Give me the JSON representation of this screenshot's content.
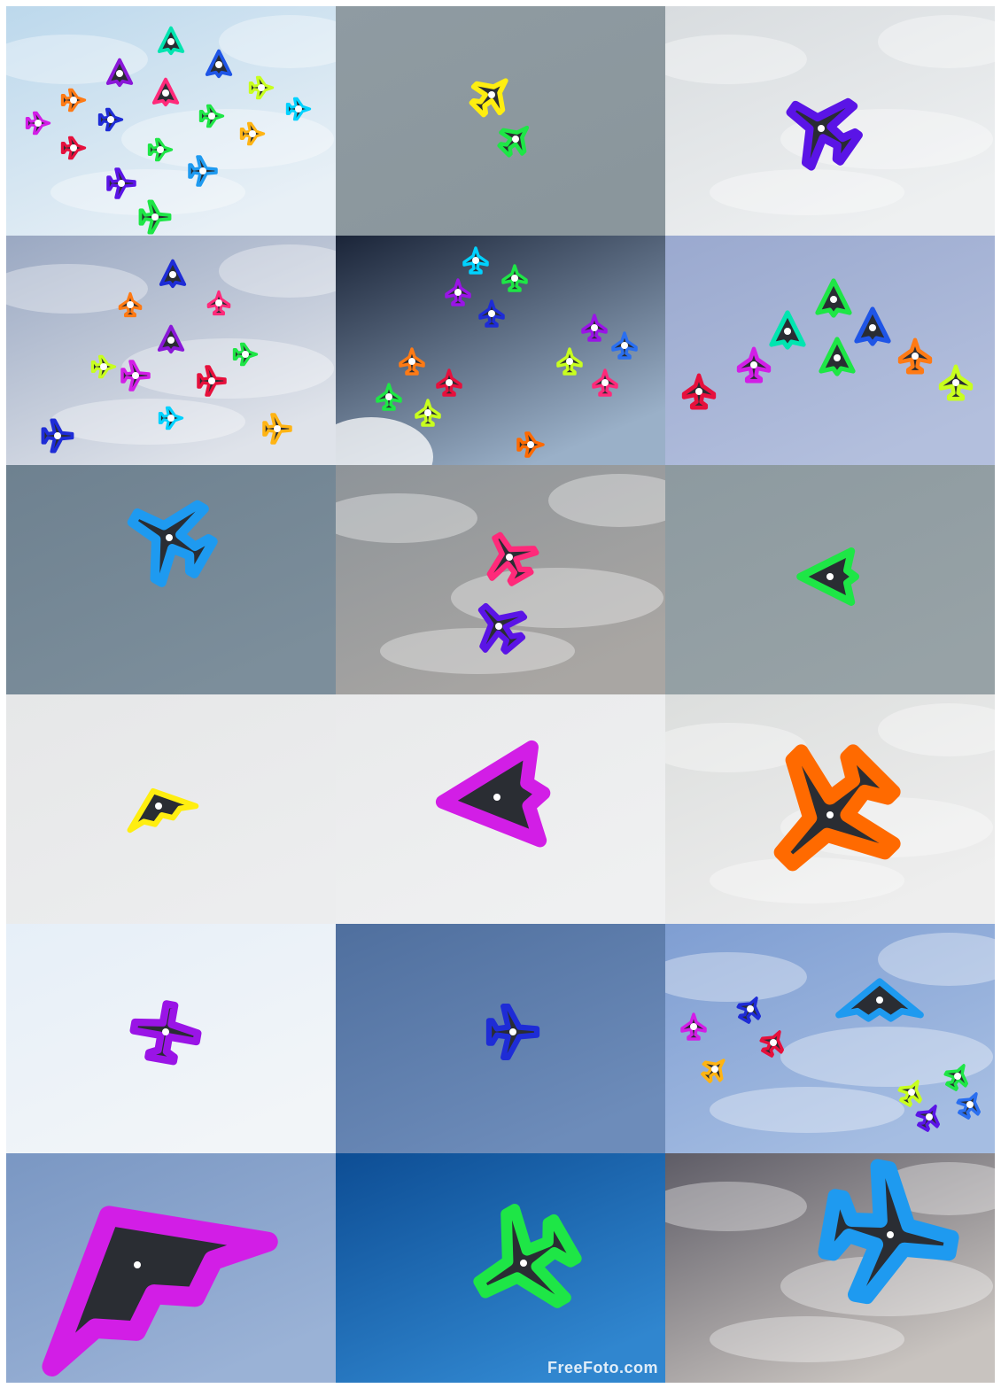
{
  "grid": {
    "rows": 6,
    "columns": 3
  },
  "tiles": [
    {
      "sky": [
        "#bcd8ec",
        "#e8f0f6"
      ],
      "clouds": true
    },
    {
      "sky": [
        "#8f9ba2",
        "#8a969c"
      ]
    },
    {
      "sky": [
        "#d8dcdf",
        "#eef0f1"
      ],
      "clouds": true
    },
    {
      "sky": [
        "#9aa8c2",
        "#dfe3ea"
      ],
      "clouds": true
    },
    {
      "sky": [
        "#1a2438",
        "#9ab0c8"
      ],
      "sun": true
    },
    {
      "sky": [
        "#9aa9cf",
        "#b3bfdd"
      ]
    },
    {
      "sky": [
        "#6e8190",
        "#7c8e9b"
      ]
    },
    {
      "sky": [
        "#8e9499",
        "#a9a6a3"
      ],
      "clouds": true
    },
    {
      "sky": [
        "#8d9aa0",
        "#97a2a6"
      ]
    },
    {
      "sky": [
        "#e6e7e8",
        "#ecedee"
      ]
    },
    {
      "sky": [
        "#e9eaeb",
        "#eff0f1"
      ]
    },
    {
      "sky": [
        "#dcdedd",
        "#eeeeee"
      ],
      "clouds": true
    },
    {
      "sky": [
        "#e6eff8",
        "#f2f5f8"
      ]
    },
    {
      "sky": [
        "#4f6f9e",
        "#6d8cba"
      ]
    },
    {
      "sky": [
        "#7f9ed2",
        "#a5bde2"
      ],
      "clouds": true
    },
    {
      "sky": [
        "#7a97c3",
        "#9ab2d6"
      ]
    },
    {
      "sky": [
        "#0d4d94",
        "#3086cf"
      ]
    },
    {
      "sky": [
        "#5e5c66",
        "#c8c3bf"
      ],
      "clouds": true
    }
  ],
  "watermark": {
    "text": "FreeFoto.com",
    "tile": 16
  },
  "annotation_colors": [
    "#00e5b0",
    "#8a17d8",
    "#1f55e6",
    "#ff2a7a",
    "#c8ff1e",
    "#ff7a14",
    "#1e2cd6",
    "#1ee646",
    "#00d2ff",
    "#d21ee6",
    "#e6103c",
    "#ffb414",
    "#1e9af0",
    "#5a14e6",
    "#ff6a00",
    "#ffee10",
    "#9a14e6",
    "#2a6ff0"
  ]
}
